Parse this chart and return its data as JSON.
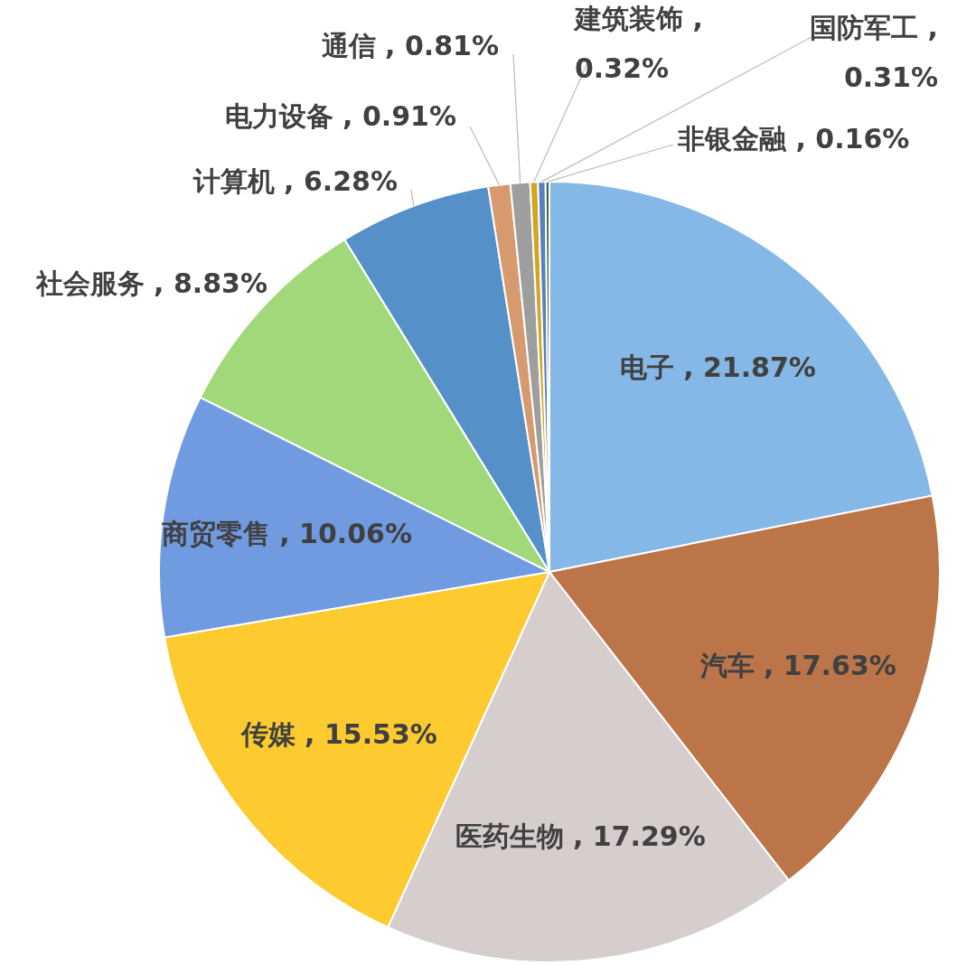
{
  "chart_data": {
    "type": "pie",
    "categories": [
      "电子",
      "汽车",
      "医药生物",
      "传媒",
      "商贸零售",
      "社会服务",
      "计算机",
      "电力设备",
      "通信",
      "建筑装饰",
      "国防军工",
      "非银金融"
    ],
    "values": [
      21.87,
      17.63,
      17.29,
      15.53,
      10.06,
      8.83,
      6.28,
      0.91,
      0.81,
      0.32,
      0.31,
      0.16
    ],
    "colors": [
      "#85b8e6",
      "#bb7548",
      "#d6cdcd",
      "#fdca2f",
      "#709be0",
      "#a0d87a",
      "#5590c8",
      "#d69a6e",
      "#9e9e9e",
      "#d4a51f",
      "#5a7fbd",
      "#3e6e3e"
    ],
    "value_labels": [
      " , 21.87%",
      " , 17.63%",
      " , 17.29%",
      " , 15.53%",
      " , 10.06%",
      " , 8.83%",
      " , 6.28%",
      " , 0.91%",
      " , 0.81%",
      " ,\n0.32%",
      " ,\n0.31%",
      " , 0.16%"
    ]
  }
}
